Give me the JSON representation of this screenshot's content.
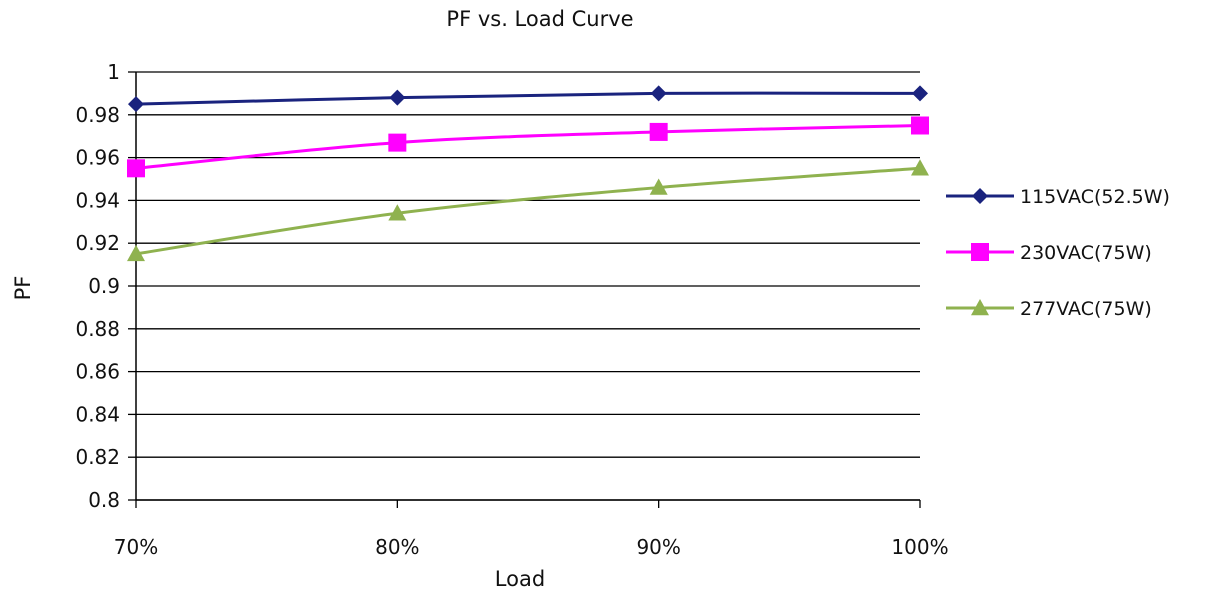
{
  "chart_data": {
    "type": "line",
    "title": "PF  vs. Load Curve",
    "xlabel": "Load",
    "ylabel": "PF",
    "categories": [
      "70%",
      "80%",
      "90%",
      "100%"
    ],
    "ylim": [
      0.8,
      1.0
    ],
    "yticks": [
      "0.8",
      "0.82",
      "0.84",
      "0.86",
      "0.88",
      "0.9",
      "0.92",
      "0.94",
      "0.96",
      "0.98",
      "1"
    ],
    "grid": true,
    "legend_position": "right",
    "series": [
      {
        "name": "115VAC(52.5W)",
        "values": [
          0.985,
          0.988,
          0.99,
          0.99
        ],
        "color": "#1a237e",
        "marker": "diamond"
      },
      {
        "name": "230VAC(75W)",
        "values": [
          0.955,
          0.967,
          0.972,
          0.975
        ],
        "color": "#ff00ff",
        "marker": "square"
      },
      {
        "name": "277VAC(75W)",
        "values": [
          0.915,
          0.934,
          0.946,
          0.955
        ],
        "color": "#8fb24f",
        "marker": "triangle"
      }
    ]
  }
}
